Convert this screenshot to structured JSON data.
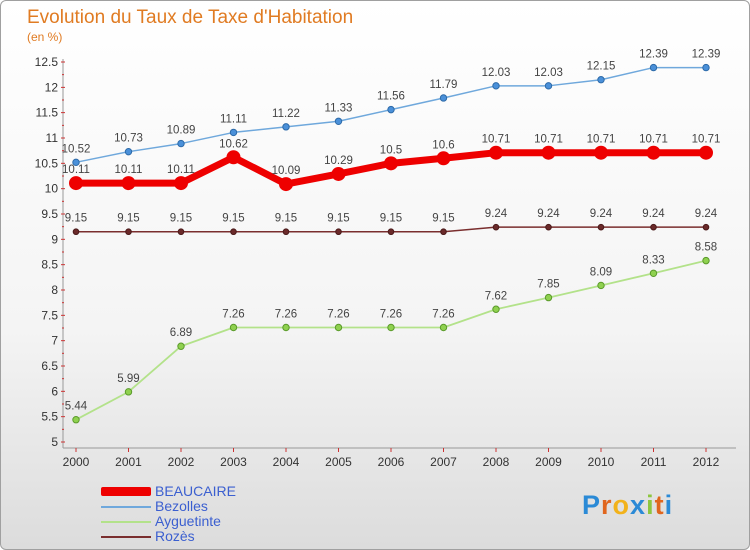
{
  "chart_data": {
    "type": "line",
    "title": "Evolution du Taux de Taxe d'Habitation",
    "subtitle": "(en %)",
    "xlabel": "",
    "ylabel": "(en %)",
    "x": [
      "2000",
      "2001",
      "2002",
      "2003",
      "2004",
      "2005",
      "2006",
      "2007",
      "2008",
      "2009",
      "2010",
      "2011",
      "2012"
    ],
    "ylim": [
      5,
      12.5
    ],
    "yticks": [
      "5",
      "5.5",
      "6",
      "6.5",
      "7",
      "7.5",
      "8",
      "8.5",
      "9",
      "9.5",
      "10",
      "10.5",
      "11",
      "11.5",
      "12",
      "12.5"
    ],
    "grid": false,
    "legend_position": "bottom-left",
    "series": [
      {
        "name": "BEAUCAIRE",
        "color": "#ee0000",
        "values": [
          10.11,
          10.11,
          10.11,
          10.62,
          10.09,
          10.29,
          10.5,
          10.6,
          10.71,
          10.71,
          10.71,
          10.71,
          10.71
        ]
      },
      {
        "name": "Bezolles",
        "color": "#6fa8dc",
        "values": [
          10.52,
          10.73,
          10.89,
          11.11,
          11.22,
          11.33,
          11.56,
          11.79,
          12.03,
          12.03,
          12.15,
          12.39,
          12.39
        ]
      },
      {
        "name": "Ayguetinte",
        "color": "#b3e28a",
        "values": [
          5.44,
          5.99,
          6.89,
          7.26,
          7.26,
          7.26,
          7.26,
          7.26,
          7.62,
          7.85,
          8.09,
          8.33,
          8.58
        ]
      },
      {
        "name": "Rozès",
        "color": "#7a2e2e",
        "values": [
          9.15,
          9.15,
          9.15,
          9.15,
          9.15,
          9.15,
          9.15,
          9.15,
          9.24,
          9.24,
          9.24,
          9.24,
          9.24
        ]
      }
    ]
  },
  "logo": {
    "text": "Proxiti"
  },
  "legend": {
    "beaucaire": "BEAUCAIRE",
    "bezolles": "Bezolles",
    "ayguetinte": "Ayguetinte",
    "rozes": "Rozès"
  }
}
